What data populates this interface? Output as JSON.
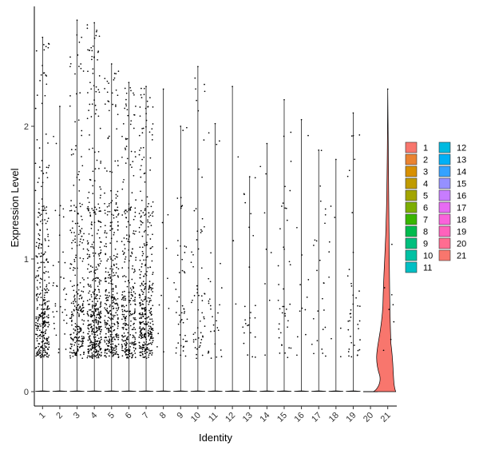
{
  "chart_data": {
    "type": "violin",
    "xlabel": "Identity",
    "ylabel": "Expression Level",
    "ylim": [
      -0.12,
      2.95
    ],
    "yticks": [
      0,
      1,
      2
    ],
    "ytick_labels": [
      "0",
      "1",
      "2"
    ],
    "grid": false,
    "legend_position": "right",
    "categories": [
      "1",
      "2",
      "3",
      "4",
      "5",
      "6",
      "7",
      "8",
      "9",
      "10",
      "11",
      "12",
      "13",
      "14",
      "15",
      "16",
      "17",
      "18",
      "19",
      "20",
      "21"
    ],
    "series_colors": [
      "#F8766D",
      "#EA8331",
      "#D89000",
      "#C09B00",
      "#A3A500",
      "#7CAE00",
      "#39B600",
      "#00BB4E",
      "#00BF7D",
      "#00C1A3",
      "#00BFC4",
      "#00BAE0",
      "#00B0F6",
      "#35A2FF",
      "#9590FF",
      "#C77CFF",
      "#E76BF3",
      "#FA62DB",
      "#FF62BC",
      "#FF6C91",
      "#F8766D"
    ],
    "groups": [
      {
        "name": "1",
        "max": 2.67,
        "n_expressing": 340
      },
      {
        "name": "2",
        "max": 2.15,
        "n_expressing": 40
      },
      {
        "name": "3",
        "max": 2.8,
        "n_expressing": 260
      },
      {
        "name": "4",
        "max": 2.78,
        "n_expressing": 420
      },
      {
        "name": "5",
        "max": 2.47,
        "n_expressing": 340
      },
      {
        "name": "6",
        "max": 2.33,
        "n_expressing": 300
      },
      {
        "name": "7",
        "max": 2.3,
        "n_expressing": 360
      },
      {
        "name": "8",
        "max": 2.28,
        "n_expressing": 10
      },
      {
        "name": "9",
        "max": 2.0,
        "n_expressing": 50
      },
      {
        "name": "10",
        "max": 2.45,
        "n_expressing": 60
      },
      {
        "name": "11",
        "max": 2.02,
        "n_expressing": 30
      },
      {
        "name": "12",
        "max": 2.3,
        "n_expressing": 3
      },
      {
        "name": "13",
        "max": 1.62,
        "n_expressing": 25
      },
      {
        "name": "14",
        "max": 1.87,
        "n_expressing": 8
      },
      {
        "name": "15",
        "max": 2.2,
        "n_expressing": 40
      },
      {
        "name": "16",
        "max": 2.05,
        "n_expressing": 12
      },
      {
        "name": "17",
        "max": 1.82,
        "n_expressing": 25
      },
      {
        "name": "18",
        "max": 1.75,
        "n_expressing": 8
      },
      {
        "name": "19",
        "max": 2.1,
        "n_expressing": 40
      },
      {
        "name": "20",
        "max": 0.0,
        "n_expressing": 0
      },
      {
        "name": "21",
        "max": 2.28,
        "n_expressing": 8
      }
    ],
    "legend": {
      "entries": [
        "1",
        "2",
        "3",
        "4",
        "5",
        "6",
        "7",
        "8",
        "9",
        "10",
        "11",
        "12",
        "13",
        "14",
        "15",
        "16",
        "17",
        "18",
        "19",
        "20",
        "21"
      ]
    }
  }
}
